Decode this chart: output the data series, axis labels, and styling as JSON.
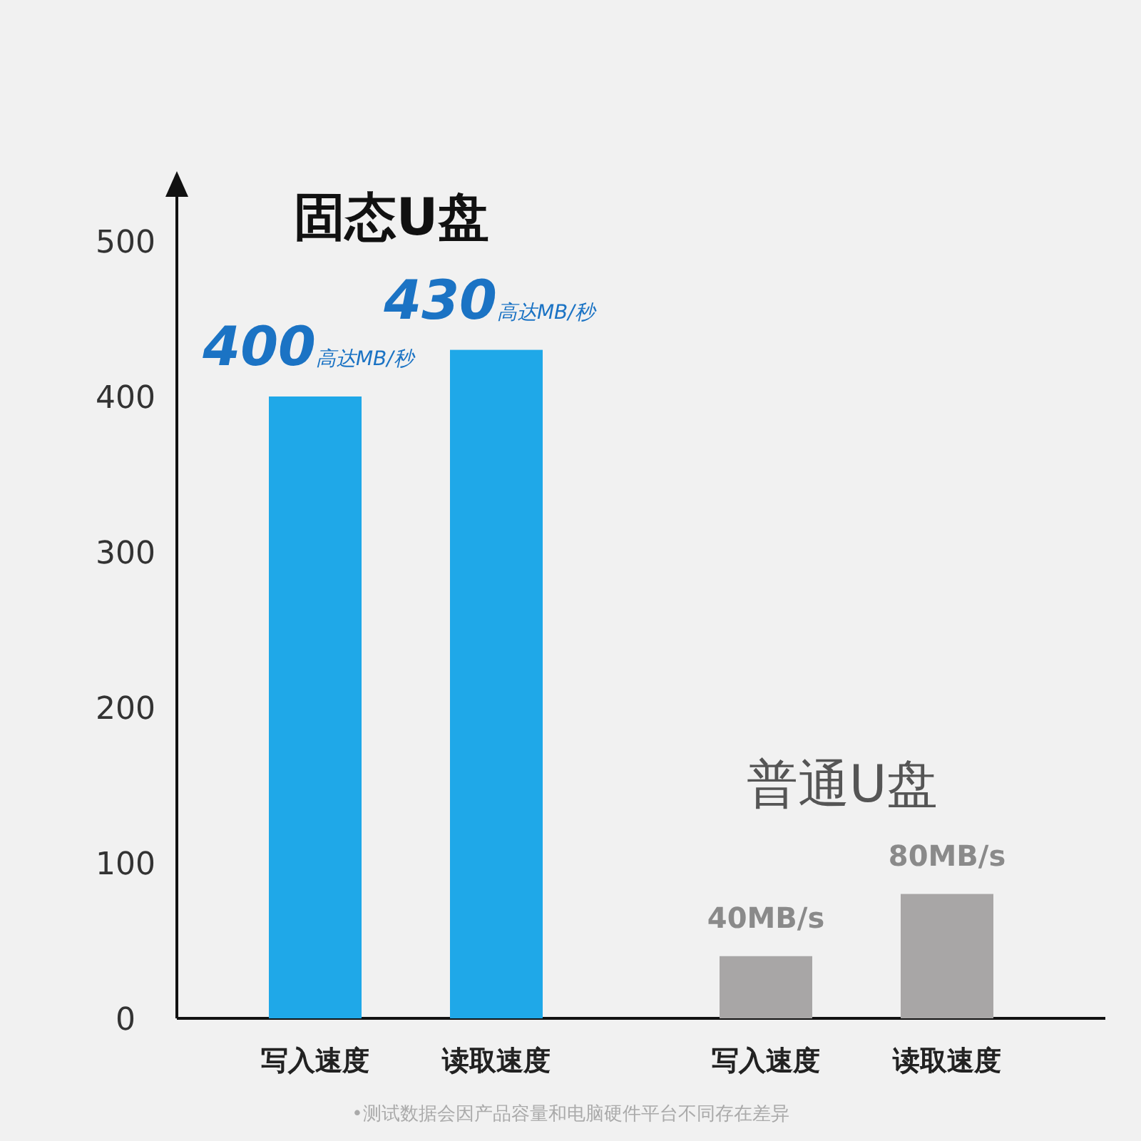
{
  "chart_data": {
    "type": "bar",
    "categories": [
      "写入速度",
      "读取速度",
      "写入速度",
      "读取速度"
    ],
    "series": [
      {
        "name": "固态U盘",
        "color": "#1fa8e8",
        "values": [
          400,
          430,
          null,
          null
        ],
        "value_labels": [
          "400高达MB/秒",
          "430高达MB/秒",
          null,
          null
        ]
      },
      {
        "name": "普通U盘",
        "color": "#a8a6a6",
        "values": [
          null,
          null,
          40,
          80
        ],
        "value_labels": [
          null,
          null,
          "40MB/s",
          "80MB/s"
        ]
      }
    ],
    "ylim": [
      0,
      500
    ],
    "yticks": [
      0,
      100,
      200,
      300,
      400,
      500
    ],
    "grid": false,
    "annotations": [
      "•测试数据会因产品容量和电脑硬件平台不同存在差异"
    ]
  }
}
